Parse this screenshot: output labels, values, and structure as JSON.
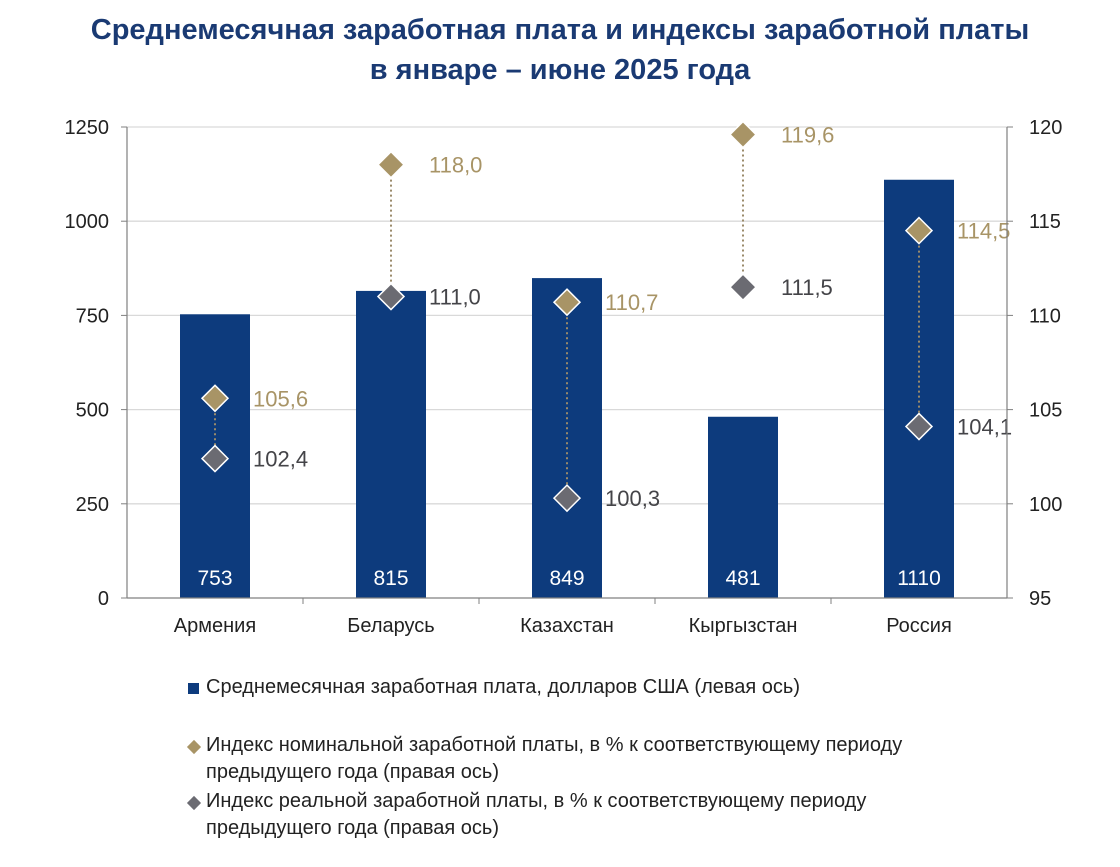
{
  "title": {
    "line1": "Среднемесячная заработная плата и индексы заработной платы",
    "line2": "в январе – июне 2025 года"
  },
  "colors": {
    "bar": "#0d3b7d",
    "nominal": "#a89466",
    "real": "#6b6b72",
    "title": "#1a3a73",
    "grid": "#d9d9d9"
  },
  "chart_data": {
    "type": "bar",
    "categories": [
      "Армения",
      "Беларусь",
      "Казахстан",
      "Кыргызстан",
      "Россия"
    ],
    "series": [
      {
        "name": "Среднемесячная заработная плата, долларов США (левая ось)",
        "axis": "left",
        "kind": "bar",
        "values": [
          753,
          815,
          849,
          481,
          1110
        ],
        "labels": [
          "753",
          "815",
          "849",
          "481",
          "1110"
        ]
      },
      {
        "name": "Индекс номинальной заработной платы, в % к соответствующему периоду предыдущего года (правая ось)",
        "axis": "right",
        "kind": "marker",
        "values": [
          105.6,
          118.0,
          110.7,
          119.6,
          114.5
        ],
        "labels": [
          "105,6",
          "118,0",
          "110,7",
          "119,6",
          "114,5"
        ]
      },
      {
        "name": "Индекс реальной заработной платы, в % к соответствующему периоду предыдущего года (правая ось)",
        "axis": "right",
        "kind": "marker",
        "values": [
          102.4,
          111.0,
          100.3,
          111.5,
          104.1
        ],
        "labels": [
          "102,4",
          "111,0",
          "100,3",
          "111,5",
          "104,1"
        ]
      }
    ],
    "left_axis": {
      "min": 0,
      "max": 1250,
      "ticks": [
        "0",
        "250",
        "500",
        "750",
        "1000",
        "1250"
      ]
    },
    "right_axis": {
      "min": 95,
      "max": 120,
      "ticks": [
        "95",
        "100",
        "105",
        "110",
        "115",
        "120"
      ]
    },
    "grid": true,
    "legend_position": "bottom"
  },
  "legend": {
    "bar": "Среднемесячная заработная плата, долларов США (левая ось)",
    "nominal_line1": "Индекс номинальной заработной платы, в % к соответствующему периоду",
    "nominal_line2": "предыдущего года (правая ось)",
    "real_line1": "Индекс реальной заработной платы, в % к соответствующему периоду",
    "real_line2": "предыдущего года (правая ось)"
  }
}
